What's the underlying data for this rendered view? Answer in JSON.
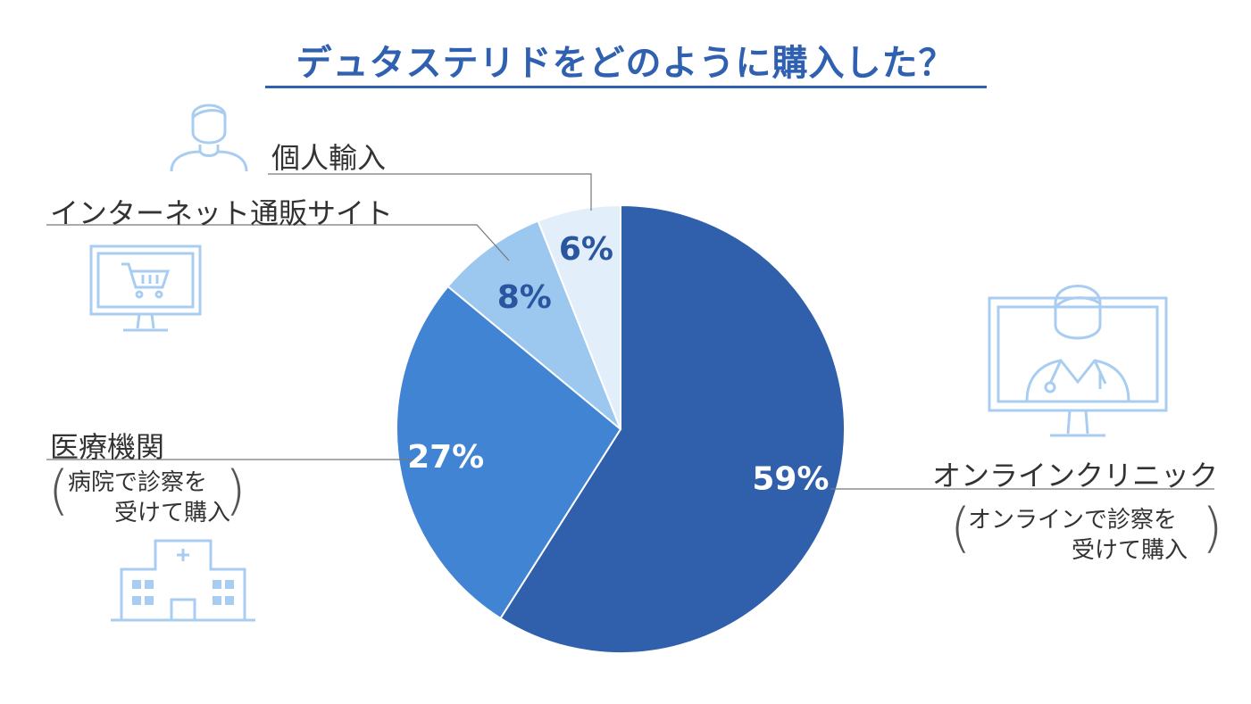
{
  "title": "デュタステリドをどのように購入した？",
  "chart_data": {
    "type": "pie",
    "title": "デュタステリドをどのように購入した？",
    "start": "12 o'clock, clockwise",
    "slices": [
      {
        "label": "オンラインクリニック",
        "sublabel": [
          "オンラインで診察を",
          "受けて購入"
        ],
        "value": 59,
        "value_label": "59%",
        "color": "#3060ac",
        "text_color": "#ffffff"
      },
      {
        "label": "医療機関",
        "sublabel": [
          "病院で診察を",
          "受けて購入"
        ],
        "value": 27,
        "value_label": "27%",
        "color": "#4284d4",
        "text_color": "#ffffff"
      },
      {
        "label": "インターネット通販サイト",
        "value": 8,
        "value_label": "8%",
        "color": "#9cc8f0",
        "text_color": "#2a56a0"
      },
      {
        "label": "個人輸入",
        "value": 6,
        "value_label": "6%",
        "color": "#e2effb",
        "text_color": "#2a56a0"
      }
    ]
  },
  "icons": {
    "person": "person-icon",
    "shopping_monitor": "shopping-cart-monitor-icon",
    "doctor_monitor": "doctor-monitor-icon",
    "hospital": "hospital-icon",
    "icon_color": "#a9cdf0"
  }
}
